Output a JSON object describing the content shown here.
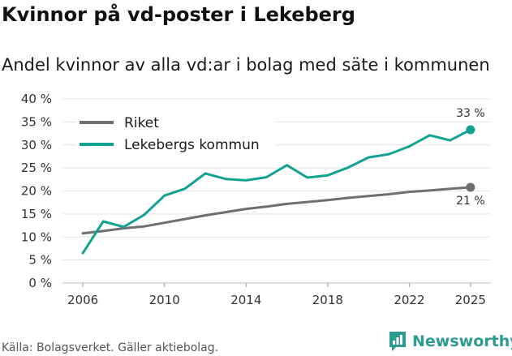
{
  "title": "Kvinnor på vd-poster i Lekeberg",
  "subtitle": "Andel kvinnor av alla vd:ar i bolag med säte i kommunen",
  "source": "Källa: Bolagsverket. Gäller aktiebolag.",
  "brand": {
    "name": "Newsworthy",
    "icon": "newsworthy-logo-icon",
    "color": "#2d9b8f"
  },
  "chart_data": {
    "type": "line",
    "title": "Kvinnor på vd-poster i Lekeberg",
    "subtitle": "Andel kvinnor av alla vd:ar i bolag med säte i kommunen",
    "xlabel": "",
    "ylabel": "",
    "x": [
      2006,
      2007,
      2008,
      2009,
      2010,
      2011,
      2012,
      2013,
      2014,
      2015,
      2016,
      2017,
      2018,
      2019,
      2020,
      2021,
      2022,
      2023,
      2024,
      2025
    ],
    "xlim": [
      2005,
      2026
    ],
    "ylim": [
      0,
      40
    ],
    "xticks": [
      2006,
      2010,
      2014,
      2018,
      2022,
      2025
    ],
    "xtick_labels": [
      "2006",
      "2010",
      "2014",
      "2018",
      "2022",
      "2025"
    ],
    "yticks": [
      0,
      5,
      10,
      15,
      20,
      25,
      30,
      35,
      40
    ],
    "ytick_labels": [
      "0 %",
      "5 %",
      "10 %",
      "15 %",
      "20 %",
      "25 %",
      "30 %",
      "35 %",
      "40 %"
    ],
    "grid": "horizontal",
    "legend_position": "top-left",
    "series": [
      {
        "name": "Riket",
        "color": "#6e6e73",
        "values": [
          10.8,
          11.3,
          11.9,
          12.3,
          13.1,
          13.9,
          14.7,
          15.4,
          16.1,
          16.6,
          17.2,
          17.6,
          18.0,
          18.5,
          18.9,
          19.3,
          19.8,
          20.1,
          20.5,
          20.8
        ],
        "end_label": "21 %"
      },
      {
        "name": "Lekebergs kommun",
        "color": "#12a292",
        "values": [
          6.5,
          13.4,
          12.2,
          14.8,
          19.0,
          20.5,
          23.8,
          22.6,
          22.3,
          23.0,
          25.6,
          22.9,
          23.4,
          25.1,
          27.3,
          28.0,
          29.7,
          32.1,
          31.0,
          33.3
        ],
        "end_label": "33 %"
      }
    ]
  }
}
